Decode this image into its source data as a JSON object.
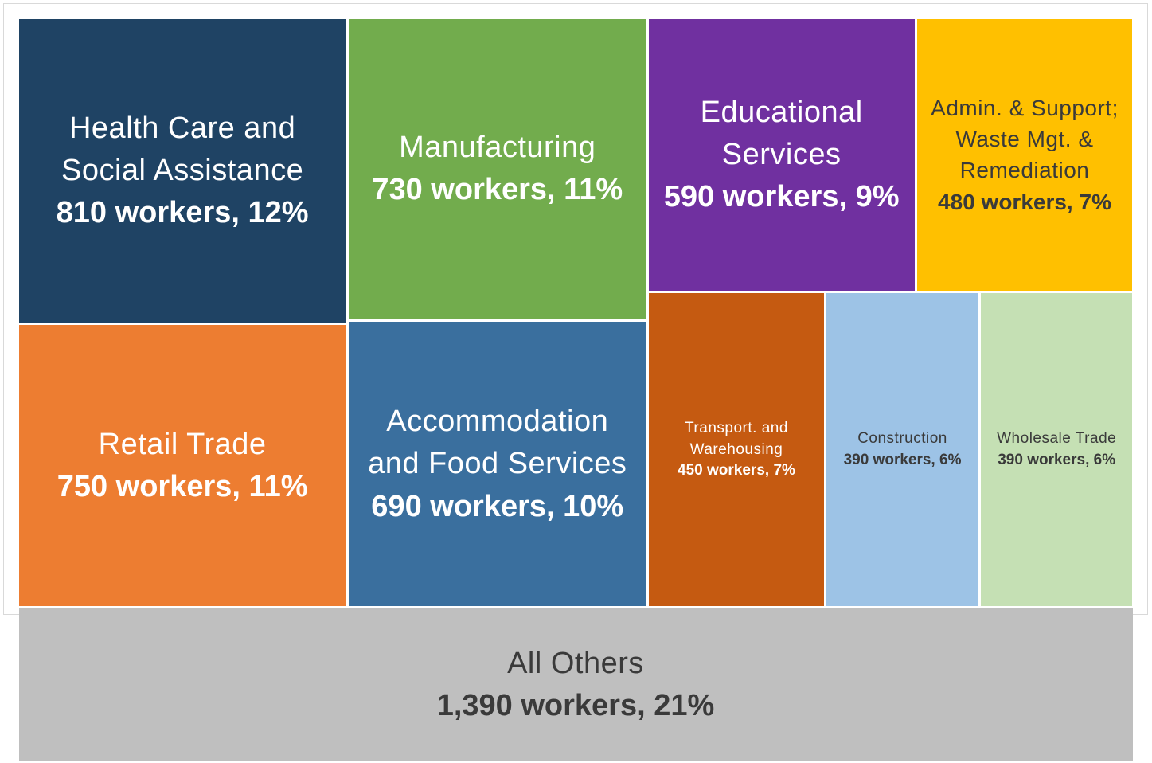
{
  "chart_data": {
    "type": "treemap",
    "categories": [
      "Health Care and Social Assistance",
      "Retail Trade",
      "Manufacturing",
      "Accommodation and Food Services",
      "Educational Services",
      "Admin. & Support; Waste Mgt. & Remediation",
      "Transport. and Warehousing",
      "Construction",
      "Wholesale Trade",
      "All Others"
    ],
    "values": [
      810,
      750,
      730,
      690,
      590,
      480,
      450,
      390,
      390,
      1390
    ],
    "value_labels": [
      "810 workers,",
      "750 workers,",
      "730 workers,",
      "690 workers,",
      "590 workers,",
      "480 workers,",
      "450 workers,",
      "390 workers,",
      "390 workers,",
      "1,390 workers,"
    ],
    "percents": [
      12,
      11,
      11,
      10,
      9,
      7,
      7,
      6,
      6,
      21
    ],
    "percent_labels": [
      "12%",
      "11%",
      "11%",
      "10%",
      "9%",
      "7%",
      "7%",
      "6%",
      "6%",
      "21%"
    ],
    "colors": [
      "#1f4364",
      "#ed7d31",
      "#72ac4d",
      "#3a6f9e",
      "#7030a0",
      "#ffc000",
      "#c55a11",
      "#9dc3e6",
      "#c5e0b4",
      "#bfbfbf"
    ]
  }
}
